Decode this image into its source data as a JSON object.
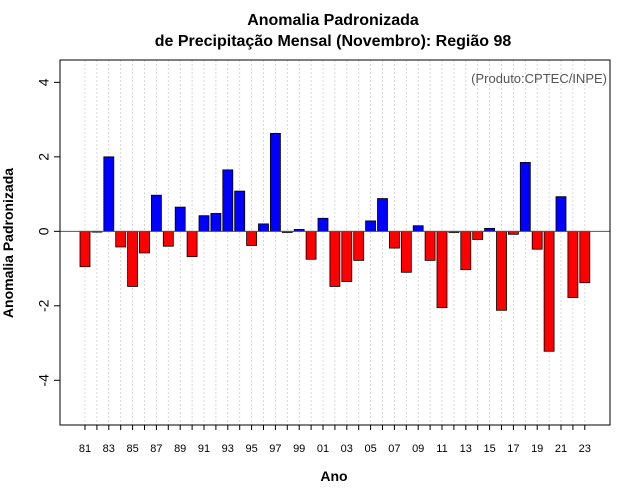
{
  "chart_data": {
    "type": "bar",
    "title_line1": "Anomalia Padronizada",
    "title_line2": "de Precipitação Mensal (Novembro): Região 98",
    "xlabel": "Ano",
    "ylabel": "Anomalia Padronizada",
    "credit": "(Produto:CPTEC/INPE)",
    "ylim": [
      -5.2,
      4.6
    ],
    "yticks": [
      -4,
      -2,
      0,
      2,
      4
    ],
    "ytick_labels": [
      "-4",
      "-2",
      "0",
      "2",
      "4"
    ],
    "xtick_labels": [
      "81",
      "83",
      "85",
      "87",
      "89",
      "91",
      "93",
      "95",
      "97",
      "99",
      "01",
      "03",
      "05",
      "07",
      "09",
      "11",
      "13",
      "15",
      "17",
      "19",
      "21",
      "23"
    ],
    "categories": [
      "1981",
      "1982",
      "1983",
      "1984",
      "1985",
      "1986",
      "1987",
      "1988",
      "1989",
      "1990",
      "1991",
      "1992",
      "1993",
      "1994",
      "1995",
      "1996",
      "1997",
      "1998",
      "1999",
      "2000",
      "2001",
      "2002",
      "2003",
      "2004",
      "2005",
      "2006",
      "2007",
      "2008",
      "2009",
      "2010",
      "2011",
      "2012",
      "2013",
      "2014",
      "2015",
      "2016",
      "2017",
      "2018",
      "2019",
      "2020",
      "2021",
      "2022",
      "2023"
    ],
    "values": [
      -0.95,
      0.0,
      2.0,
      -0.42,
      -1.48,
      -0.58,
      0.97,
      -0.4,
      0.65,
      -0.68,
      0.42,
      0.48,
      1.65,
      1.08,
      -0.38,
      0.2,
      2.63,
      -0.03,
      0.05,
      -0.75,
      0.35,
      -1.48,
      -1.35,
      -0.78,
      0.28,
      0.88,
      -0.45,
      -1.1,
      0.15,
      -0.78,
      -2.05,
      -0.03,
      -1.03,
      -0.22,
      0.08,
      -2.12,
      -0.08,
      1.85,
      -0.48,
      -3.22,
      0.93,
      -1.78,
      -1.38
    ],
    "colors": {
      "positive": "#0000ff",
      "negative": "#ff0000",
      "zero_line": "#555555",
      "grid": "#cfcfcf"
    }
  }
}
